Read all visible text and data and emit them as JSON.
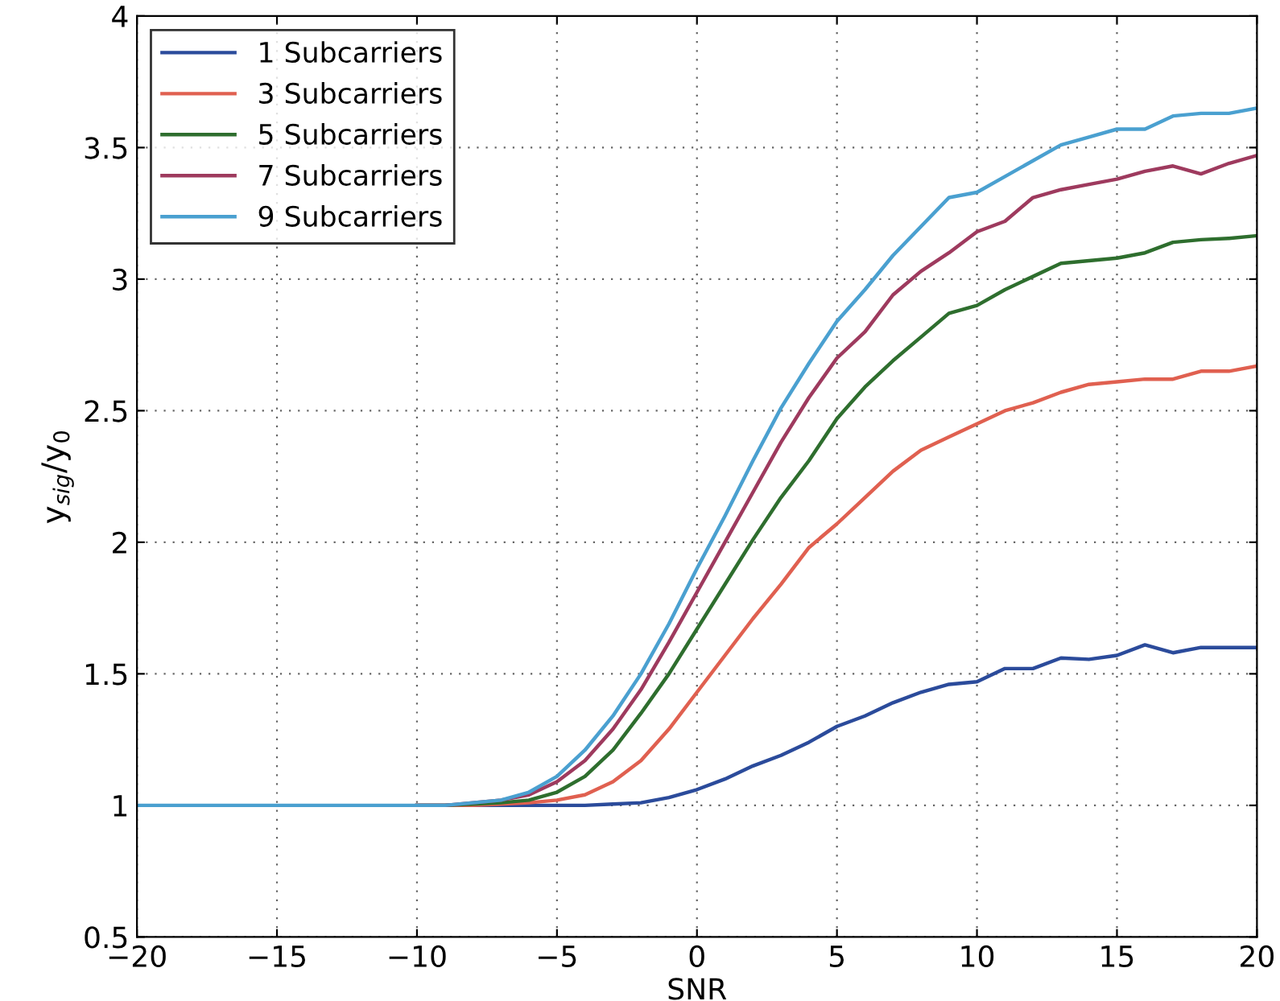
{
  "chart_data": {
    "type": "line",
    "xlabel": "SNR",
    "ylabel": "y$_{sig}$/y$_{0}$",
    "x": [
      -20,
      -19,
      -18,
      -17,
      -16,
      -15,
      -14,
      -13,
      -12,
      -11,
      -10,
      -9,
      -8,
      -7,
      -6,
      -5,
      -4,
      -3,
      -2,
      -1,
      0,
      1,
      2,
      3,
      4,
      5,
      6,
      7,
      8,
      9,
      10,
      11,
      12,
      13,
      14,
      15,
      16,
      17,
      18,
      19,
      20
    ],
    "series": [
      {
        "name": "1 Subcarriers",
        "color": "#2b4b9b",
        "values": [
          null,
          null,
          null,
          null,
          null,
          null,
          null,
          null,
          null,
          null,
          1,
          1,
          1,
          1,
          1,
          1,
          1,
          1.005,
          1.01,
          1.03,
          1.06,
          1.1,
          1.15,
          1.19,
          1.24,
          1.3,
          1.34,
          1.39,
          1.43,
          1.46,
          1.47,
          1.52,
          1.52,
          1.56,
          1.555,
          1.57,
          1.61,
          1.58,
          1.6,
          1.6,
          1.6
        ]
      },
      {
        "name": "3 Subcarriers",
        "color": "#e06050",
        "values": [
          null,
          null,
          null,
          null,
          null,
          null,
          null,
          null,
          null,
          null,
          1,
          1,
          1,
          1.005,
          1.01,
          1.02,
          1.04,
          1.09,
          1.17,
          1.29,
          1.43,
          1.57,
          1.71,
          1.84,
          1.98,
          2.07,
          2.17,
          2.27,
          2.35,
          2.4,
          2.45,
          2.5,
          2.53,
          2.57,
          2.6,
          2.61,
          2.62,
          2.62,
          2.65,
          2.65,
          2.67
        ]
      },
      {
        "name": "5 Subcarriers",
        "color": "#2e6e2e",
        "values": [
          null,
          null,
          null,
          null,
          null,
          null,
          null,
          null,
          null,
          null,
          1,
          1,
          1.005,
          1.01,
          1.02,
          1.05,
          1.11,
          1.21,
          1.35,
          1.5,
          1.67,
          1.84,
          2.01,
          2.17,
          2.31,
          2.47,
          2.59,
          2.69,
          2.78,
          2.87,
          2.9,
          2.96,
          3.01,
          3.06,
          3.07,
          3.08,
          3.1,
          3.14,
          3.15,
          3.155,
          3.165
        ]
      },
      {
        "name": "7 Subcarriers",
        "color": "#9e3a5e",
        "values": [
          null,
          null,
          null,
          null,
          null,
          null,
          null,
          null,
          null,
          null,
          1,
          1,
          1.01,
          1.02,
          1.04,
          1.09,
          1.17,
          1.29,
          1.44,
          1.62,
          1.81,
          2.0,
          2.19,
          2.38,
          2.55,
          2.7,
          2.8,
          2.94,
          3.03,
          3.1,
          3.18,
          3.22,
          3.31,
          3.34,
          3.36,
          3.38,
          3.41,
          3.43,
          3.4,
          3.44,
          3.47
        ]
      },
      {
        "name": "9 Subcarriers",
        "color": "#4aa0d0",
        "values": [
          1,
          1,
          1,
          1,
          1,
          1,
          1,
          1,
          1,
          1,
          1,
          1,
          1.01,
          1.02,
          1.05,
          1.11,
          1.21,
          1.34,
          1.5,
          1.69,
          1.9,
          2.1,
          2.31,
          2.51,
          2.68,
          2.84,
          2.96,
          3.09,
          3.2,
          3.31,
          3.33,
          3.39,
          3.45,
          3.51,
          3.54,
          3.57,
          3.57,
          3.62,
          3.63,
          3.63,
          3.65
        ]
      }
    ],
    "xlim": [
      -20,
      20
    ],
    "xticks": [
      -20,
      -15,
      -10,
      -5,
      0,
      5,
      10,
      15,
      20
    ],
    "ylim": [
      0.5,
      4
    ],
    "yticks": [
      0.5,
      1,
      1.5,
      2,
      2.5,
      3,
      3.5,
      4
    ],
    "grid": true,
    "legend": "top left",
    "line_style": "solid",
    "marker": "none"
  }
}
